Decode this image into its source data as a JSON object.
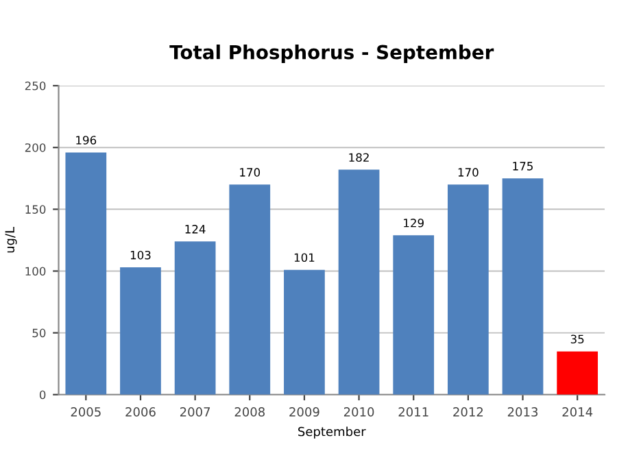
{
  "chart_data": {
    "type": "bar",
    "title": "Total Phosphorus - September",
    "xlabel": "September",
    "ylabel": "ug/L",
    "categories": [
      "2005",
      "2006",
      "2007",
      "2008",
      "2009",
      "2010",
      "2011",
      "2012",
      "2013",
      "2014"
    ],
    "values": [
      196,
      103,
      124,
      170,
      101,
      182,
      129,
      170,
      175,
      35
    ],
    "colors": [
      "#4f81bd",
      "#4f81bd",
      "#4f81bd",
      "#4f81bd",
      "#4f81bd",
      "#4f81bd",
      "#4f81bd",
      "#4f81bd",
      "#4f81bd",
      "#ff0000"
    ],
    "ylim": [
      0,
      250
    ],
    "yticks": [
      0,
      50,
      100,
      150,
      200,
      250
    ],
    "grid": "y",
    "data_labels": true
  }
}
